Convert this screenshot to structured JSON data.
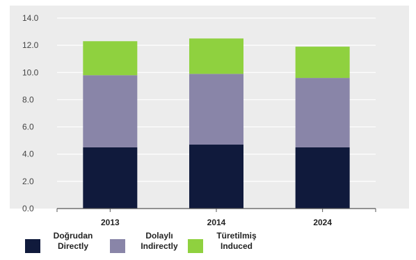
{
  "chart_data": {
    "type": "bar",
    "stacked": true,
    "categories": [
      "2013",
      "2014",
      "2024"
    ],
    "series": [
      {
        "name": "Doğrudan Directly",
        "name_tr": "Doğrudan",
        "name_en": "Directly",
        "values": [
          4.5,
          4.7,
          4.5
        ],
        "color": "#101a3c"
      },
      {
        "name": "Dolaylı Indirectly",
        "name_tr": "Dolaylı",
        "name_en": "Indirectly",
        "values": [
          5.3,
          5.2,
          5.1
        ],
        "color": "#8985a8"
      },
      {
        "name": "Türetilmiş Induced",
        "name_tr": "Türetilmiş",
        "name_en": "Induced",
        "values": [
          2.5,
          2.6,
          2.3
        ],
        "color": "#8fd13f"
      }
    ],
    "ylim": [
      0,
      14
    ],
    "yticks": [
      "0.0",
      "2.0",
      "4.0",
      "6.0",
      "8.0",
      "10.0",
      "12.0",
      "14.0"
    ],
    "grid": true,
    "legend": "bottom"
  }
}
